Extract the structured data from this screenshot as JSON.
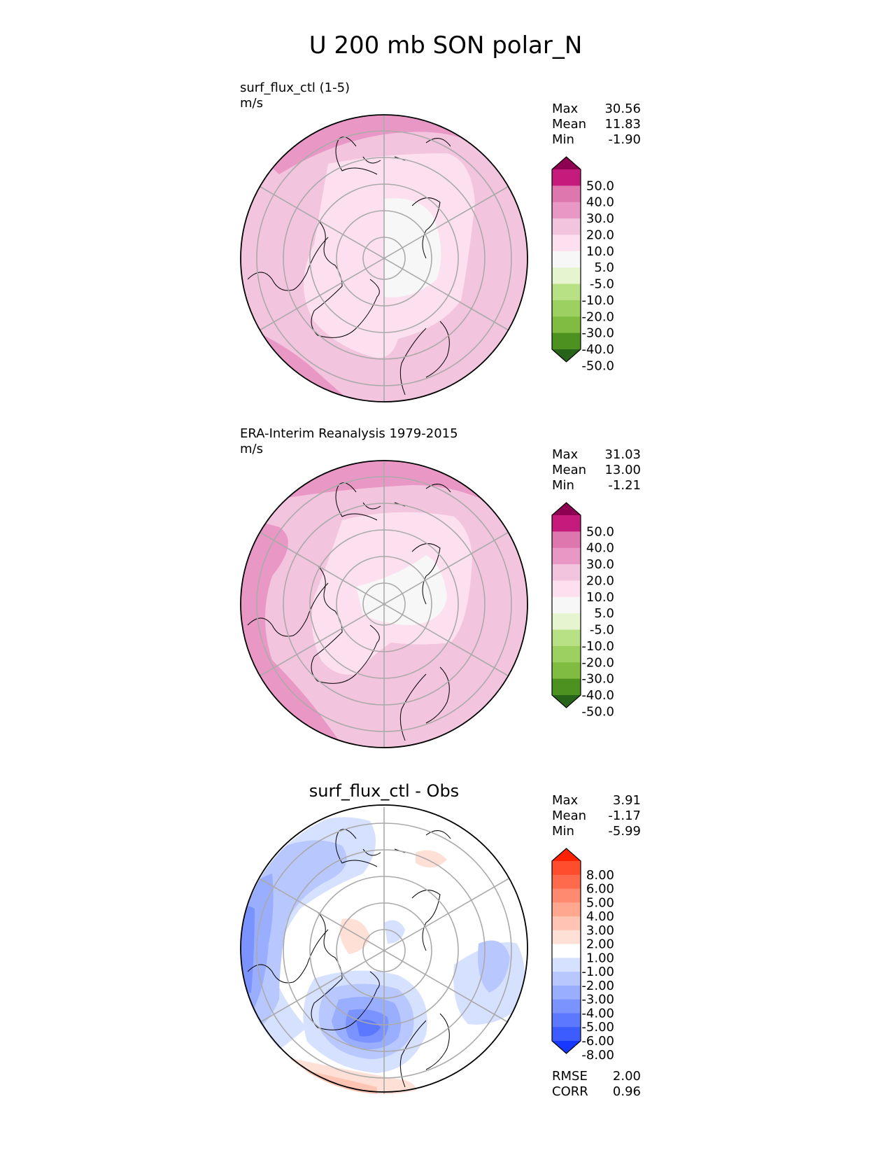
{
  "figure_title": "U 200 mb SON polar_N",
  "chart_data": [
    {
      "type": "polar_contour_map",
      "title": "surf_flux_ctl (1-5)",
      "units": "m/s",
      "stats": [
        {
          "label": "Max",
          "value": "30.56"
        },
        {
          "label": "Mean",
          "value": "11.83"
        },
        {
          "label": "Min",
          "value": "-1.90"
        }
      ],
      "colorbar": {
        "levels": [
          "50.0",
          "40.0",
          "30.0",
          "20.0",
          "10.0",
          "5.0",
          "-5.0",
          "-10.0",
          "-20.0",
          "-30.0",
          "-40.0",
          "-50.0"
        ],
        "colors": [
          "#8e0152",
          "#c51b7d",
          "#de77ae",
          "#e998c5",
          "#f2c4de",
          "#fde0ef",
          "#f7f7f7",
          "#e6f5d0",
          "#b8e186",
          "#9cd060",
          "#7fbc41",
          "#4d9221",
          "#276419"
        ]
      },
      "field": [
        {
          "value_band": "5 to 10",
          "color": "#f7f7f7"
        },
        {
          "value_band": "10 to 20",
          "color": "#fde0ef"
        },
        {
          "value_band": "20 to 30",
          "color": "#f2c4de"
        },
        {
          "value_band": "30 to 40",
          "color": "#e998c5"
        }
      ]
    },
    {
      "type": "polar_contour_map",
      "title": "ERA-Interim Reanalysis 1979-2015",
      "units": "m/s",
      "stats": [
        {
          "label": "Max",
          "value": "31.03"
        },
        {
          "label": "Mean",
          "value": "13.00"
        },
        {
          "label": "Min",
          "value": "-1.21"
        }
      ],
      "colorbar": {
        "levels": [
          "50.0",
          "40.0",
          "30.0",
          "20.0",
          "10.0",
          "5.0",
          "-5.0",
          "-10.0",
          "-20.0",
          "-30.0",
          "-40.0",
          "-50.0"
        ],
        "colors": [
          "#8e0152",
          "#c51b7d",
          "#de77ae",
          "#e998c5",
          "#f2c4de",
          "#fde0ef",
          "#f7f7f7",
          "#e6f5d0",
          "#b8e186",
          "#9cd060",
          "#7fbc41",
          "#4d9221",
          "#276419"
        ]
      },
      "field": [
        {
          "value_band": "5 to 10",
          "color": "#f7f7f7"
        },
        {
          "value_band": "10 to 20",
          "color": "#fde0ef"
        },
        {
          "value_band": "20 to 30",
          "color": "#f2c4de"
        },
        {
          "value_band": "30 to 40",
          "color": "#e998c5"
        }
      ]
    },
    {
      "type": "polar_contour_map",
      "title": "surf_flux_ctl - Obs",
      "units": "",
      "stats": [
        {
          "label": "Max",
          "value": "3.91"
        },
        {
          "label": "Mean",
          "value": "-1.17"
        },
        {
          "label": "Min",
          "value": "-5.99"
        }
      ],
      "metrics": [
        {
          "label": "RMSE",
          "value": "2.00"
        },
        {
          "label": "CORR",
          "value": "0.96"
        }
      ],
      "colorbar": {
        "levels": [
          "8.00",
          "6.00",
          "5.00",
          "4.00",
          "3.00",
          "2.00",
          "1.00",
          "-1.00",
          "-2.00",
          "-3.00",
          "-4.00",
          "-5.00",
          "-6.00",
          "-8.00"
        ],
        "colors": [
          "#ff2200",
          "#ff4d2e",
          "#ff6a4d",
          "#ff8a70",
          "#ffa88f",
          "#ffc4b3",
          "#ffe0d6",
          "#ffffff",
          "#d6e0ff",
          "#b8c8ff",
          "#9aaeff",
          "#7b93ff",
          "#5c78ff",
          "#3d5cff",
          "#1638ff"
        ]
      },
      "field": [
        {
          "value_band": "1 to 2",
          "color": "#ffe0d6"
        },
        {
          "value_band": "2 to 3",
          "color": "#ffc4b3"
        },
        {
          "value_band": "3 to 4",
          "color": "#ffa88f"
        },
        {
          "value_band": "-2 to -1",
          "color": "#d6e0ff"
        },
        {
          "value_band": "-3 to -2",
          "color": "#b8c8ff"
        },
        {
          "value_band": "-4 to -3",
          "color": "#9aaeff"
        },
        {
          "value_band": "-5 to -4",
          "color": "#7b93ff"
        },
        {
          "value_band": "-6 to -5",
          "color": "#5c78ff"
        }
      ]
    }
  ]
}
